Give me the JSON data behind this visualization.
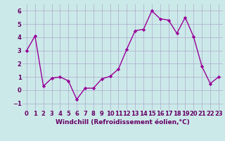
{
  "x": [
    0,
    1,
    2,
    3,
    4,
    5,
    6,
    7,
    8,
    9,
    10,
    11,
    12,
    13,
    14,
    15,
    16,
    17,
    18,
    19,
    20,
    21,
    22,
    23
  ],
  "y": [
    3.0,
    4.1,
    0.3,
    0.9,
    1.0,
    0.7,
    -0.7,
    0.15,
    0.15,
    0.85,
    1.05,
    1.6,
    3.1,
    4.5,
    4.6,
    6.0,
    5.4,
    5.3,
    4.3,
    5.5,
    4.05,
    1.8,
    0.5,
    1.0
  ],
  "line_color": "#990099",
  "marker": "D",
  "markersize": 2.2,
  "linewidth": 1.0,
  "xlabel": "Windchill (Refroidissement éolien,°C)",
  "ylim": [
    -1.5,
    6.5
  ],
  "xlim": [
    -0.5,
    23.5
  ],
  "yticks": [
    -1,
    0,
    1,
    2,
    3,
    4,
    5,
    6
  ],
  "xticks": [
    0,
    1,
    2,
    3,
    4,
    5,
    6,
    7,
    8,
    9,
    10,
    11,
    12,
    13,
    14,
    15,
    16,
    17,
    18,
    19,
    20,
    21,
    22,
    23
  ],
  "bg_color": "#cce9e9",
  "grid_color": "#aaaacc",
  "xlabel_fontsize": 6.5,
  "tick_fontsize": 6.0,
  "xlabel_color": "#660066",
  "tick_label_color": "#660066"
}
